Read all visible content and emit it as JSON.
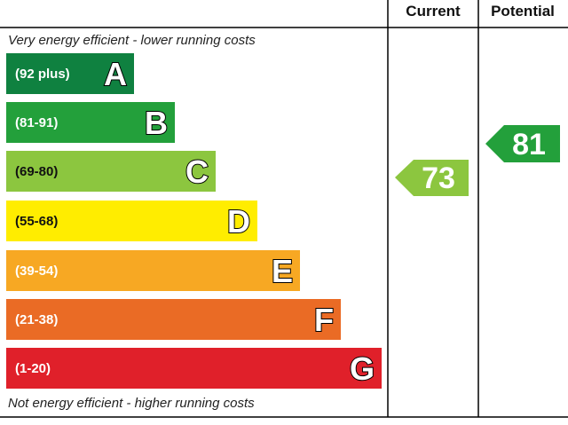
{
  "header": {
    "current": "Current",
    "potential": "Potential"
  },
  "top_note": "Very energy efficient - lower running costs",
  "bottom_note": "Not energy efficient - higher running costs",
  "bands": [
    {
      "range": "(92 plus)",
      "letter": "A",
      "color": "#0f8140"
    },
    {
      "range": "(81-91)",
      "letter": "B",
      "color": "#23a03b"
    },
    {
      "range": "(69-80)",
      "letter": "C",
      "color": "#8cc63f"
    },
    {
      "range": "(55-68)",
      "letter": "D",
      "color": "#ffed00"
    },
    {
      "range": "(39-54)",
      "letter": "E",
      "color": "#f7a823"
    },
    {
      "range": "(21-38)",
      "letter": "F",
      "color": "#ea6b25"
    },
    {
      "range": "(1-20)",
      "letter": "G",
      "color": "#e0202a"
    }
  ],
  "current": {
    "value": 73,
    "color": "#8cc63f"
  },
  "potential": {
    "value": 81,
    "color": "#23a03b"
  }
}
